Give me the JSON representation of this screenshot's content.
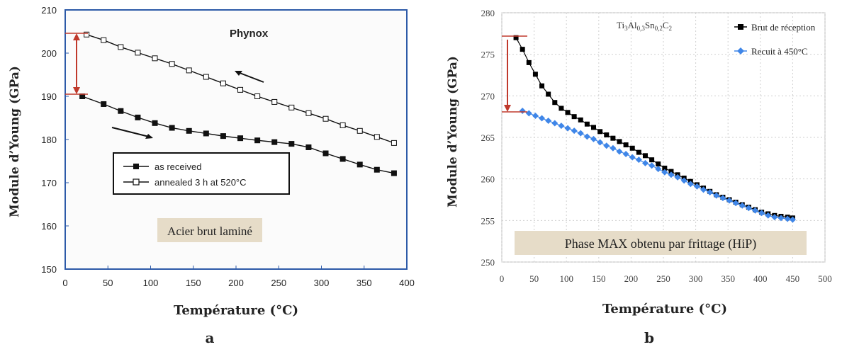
{
  "chart_data": [
    {
      "type": "line",
      "panel_label": "a",
      "title": "Phynox",
      "xlabel": "Température (°C)",
      "ylabel": "Module d’Young (GPa)",
      "xlim": [
        0,
        400
      ],
      "ylim": [
        150,
        210
      ],
      "xticks": [
        0,
        50,
        100,
        150,
        200,
        250,
        300,
        350,
        400
      ],
      "yticks": [
        150,
        160,
        170,
        180,
        190,
        200,
        210
      ],
      "legend_position": "center-left",
      "caption": "Acier brut laminé",
      "series": [
        {
          "name": "as received",
          "marker": "filled-square",
          "x": [
            20,
            45,
            65,
            85,
            105,
            125,
            145,
            165,
            185,
            205,
            225,
            245,
            265,
            285,
            305,
            325,
            345,
            365,
            385
          ],
          "y": [
            190,
            188.2,
            186.6,
            185.1,
            183.8,
            182.7,
            182.0,
            181.4,
            180.8,
            180.3,
            179.8,
            179.4,
            179.0,
            178.2,
            176.8,
            175.5,
            174.2,
            173.0,
            172.2
          ]
        },
        {
          "name": "annealed 3 h at 520°C",
          "marker": "open-square",
          "x": [
            25,
            45,
            65,
            85,
            105,
            125,
            145,
            165,
            185,
            205,
            225,
            245,
            265,
            285,
            305,
            325,
            345,
            365,
            385
          ],
          "y": [
            204.3,
            203.0,
            201.4,
            200.1,
            198.8,
            197.5,
            196.0,
            194.5,
            193.0,
            191.5,
            190.0,
            188.7,
            187.4,
            186.1,
            184.8,
            183.3,
            182.0,
            180.6,
            179.2
          ]
        }
      ]
    },
    {
      "type": "scatter",
      "panel_label": "b",
      "title": "Ti3Al0.3Sn0.2C2",
      "title_parts": [
        "Ti",
        "3",
        "Al",
        "0,3",
        "Sn",
        "0,2",
        "C",
        "2"
      ],
      "xlabel": "Température (°C)",
      "ylabel": "Module d’Young (GPa)",
      "xlim": [
        0,
        500
      ],
      "ylim": [
        250,
        280
      ],
      "xticks": [
        0,
        50,
        100,
        150,
        200,
        250,
        300,
        350,
        400,
        450,
        500
      ],
      "yticks": [
        250,
        255,
        260,
        265,
        270,
        275,
        280
      ],
      "grid": true,
      "legend_position": "top-right",
      "caption": "Phase MAX obtenu par frittage (HiP)",
      "series": [
        {
          "name": "Brut de réception",
          "color": "#000000",
          "marker": "square",
          "x": [
            22,
            32,
            42,
            52,
            62,
            72,
            82,
            92,
            102,
            112,
            122,
            132,
            142,
            152,
            162,
            172,
            182,
            192,
            202,
            212,
            222,
            232,
            242,
            252,
            262,
            272,
            282,
            292,
            302,
            312,
            322,
            332,
            342,
            352,
            362,
            372,
            382,
            392,
            402,
            412,
            422,
            432,
            442,
            450
          ],
          "y": [
            277.0,
            275.6,
            274.0,
            272.6,
            271.2,
            270.2,
            269.2,
            268.5,
            268.0,
            267.5,
            267.1,
            266.6,
            266.2,
            265.7,
            265.3,
            264.9,
            264.5,
            264.1,
            263.7,
            263.2,
            262.8,
            262.3,
            261.8,
            261.3,
            260.9,
            260.5,
            260.1,
            259.7,
            259.3,
            258.9,
            258.5,
            258.1,
            257.8,
            257.5,
            257.2,
            256.9,
            256.6,
            256.3,
            256.0,
            255.8,
            255.6,
            255.5,
            255.4,
            255.3
          ]
        },
        {
          "name": "Recuit à 450°C",
          "color": "#3f86e8",
          "marker": "diamond",
          "x": [
            32,
            42,
            52,
            62,
            72,
            82,
            92,
            102,
            112,
            122,
            132,
            142,
            152,
            162,
            172,
            182,
            192,
            202,
            212,
            222,
            232,
            242,
            252,
            262,
            272,
            282,
            292,
            302,
            312,
            322,
            332,
            342,
            352,
            362,
            372,
            382,
            392,
            402,
            412,
            422,
            432,
            442,
            450
          ],
          "y": [
            268.2,
            267.9,
            267.6,
            267.3,
            267.0,
            266.7,
            266.4,
            266.1,
            265.8,
            265.5,
            265.1,
            264.8,
            264.4,
            264.0,
            263.7,
            263.3,
            263.0,
            262.6,
            262.3,
            261.9,
            261.6,
            261.2,
            260.8,
            260.5,
            260.2,
            259.8,
            259.4,
            259.1,
            258.7,
            258.4,
            258.0,
            257.7,
            257.4,
            257.1,
            256.8,
            256.5,
            256.2,
            255.9,
            255.6,
            255.4,
            255.3,
            255.2,
            255.1
          ]
        }
      ]
    }
  ]
}
